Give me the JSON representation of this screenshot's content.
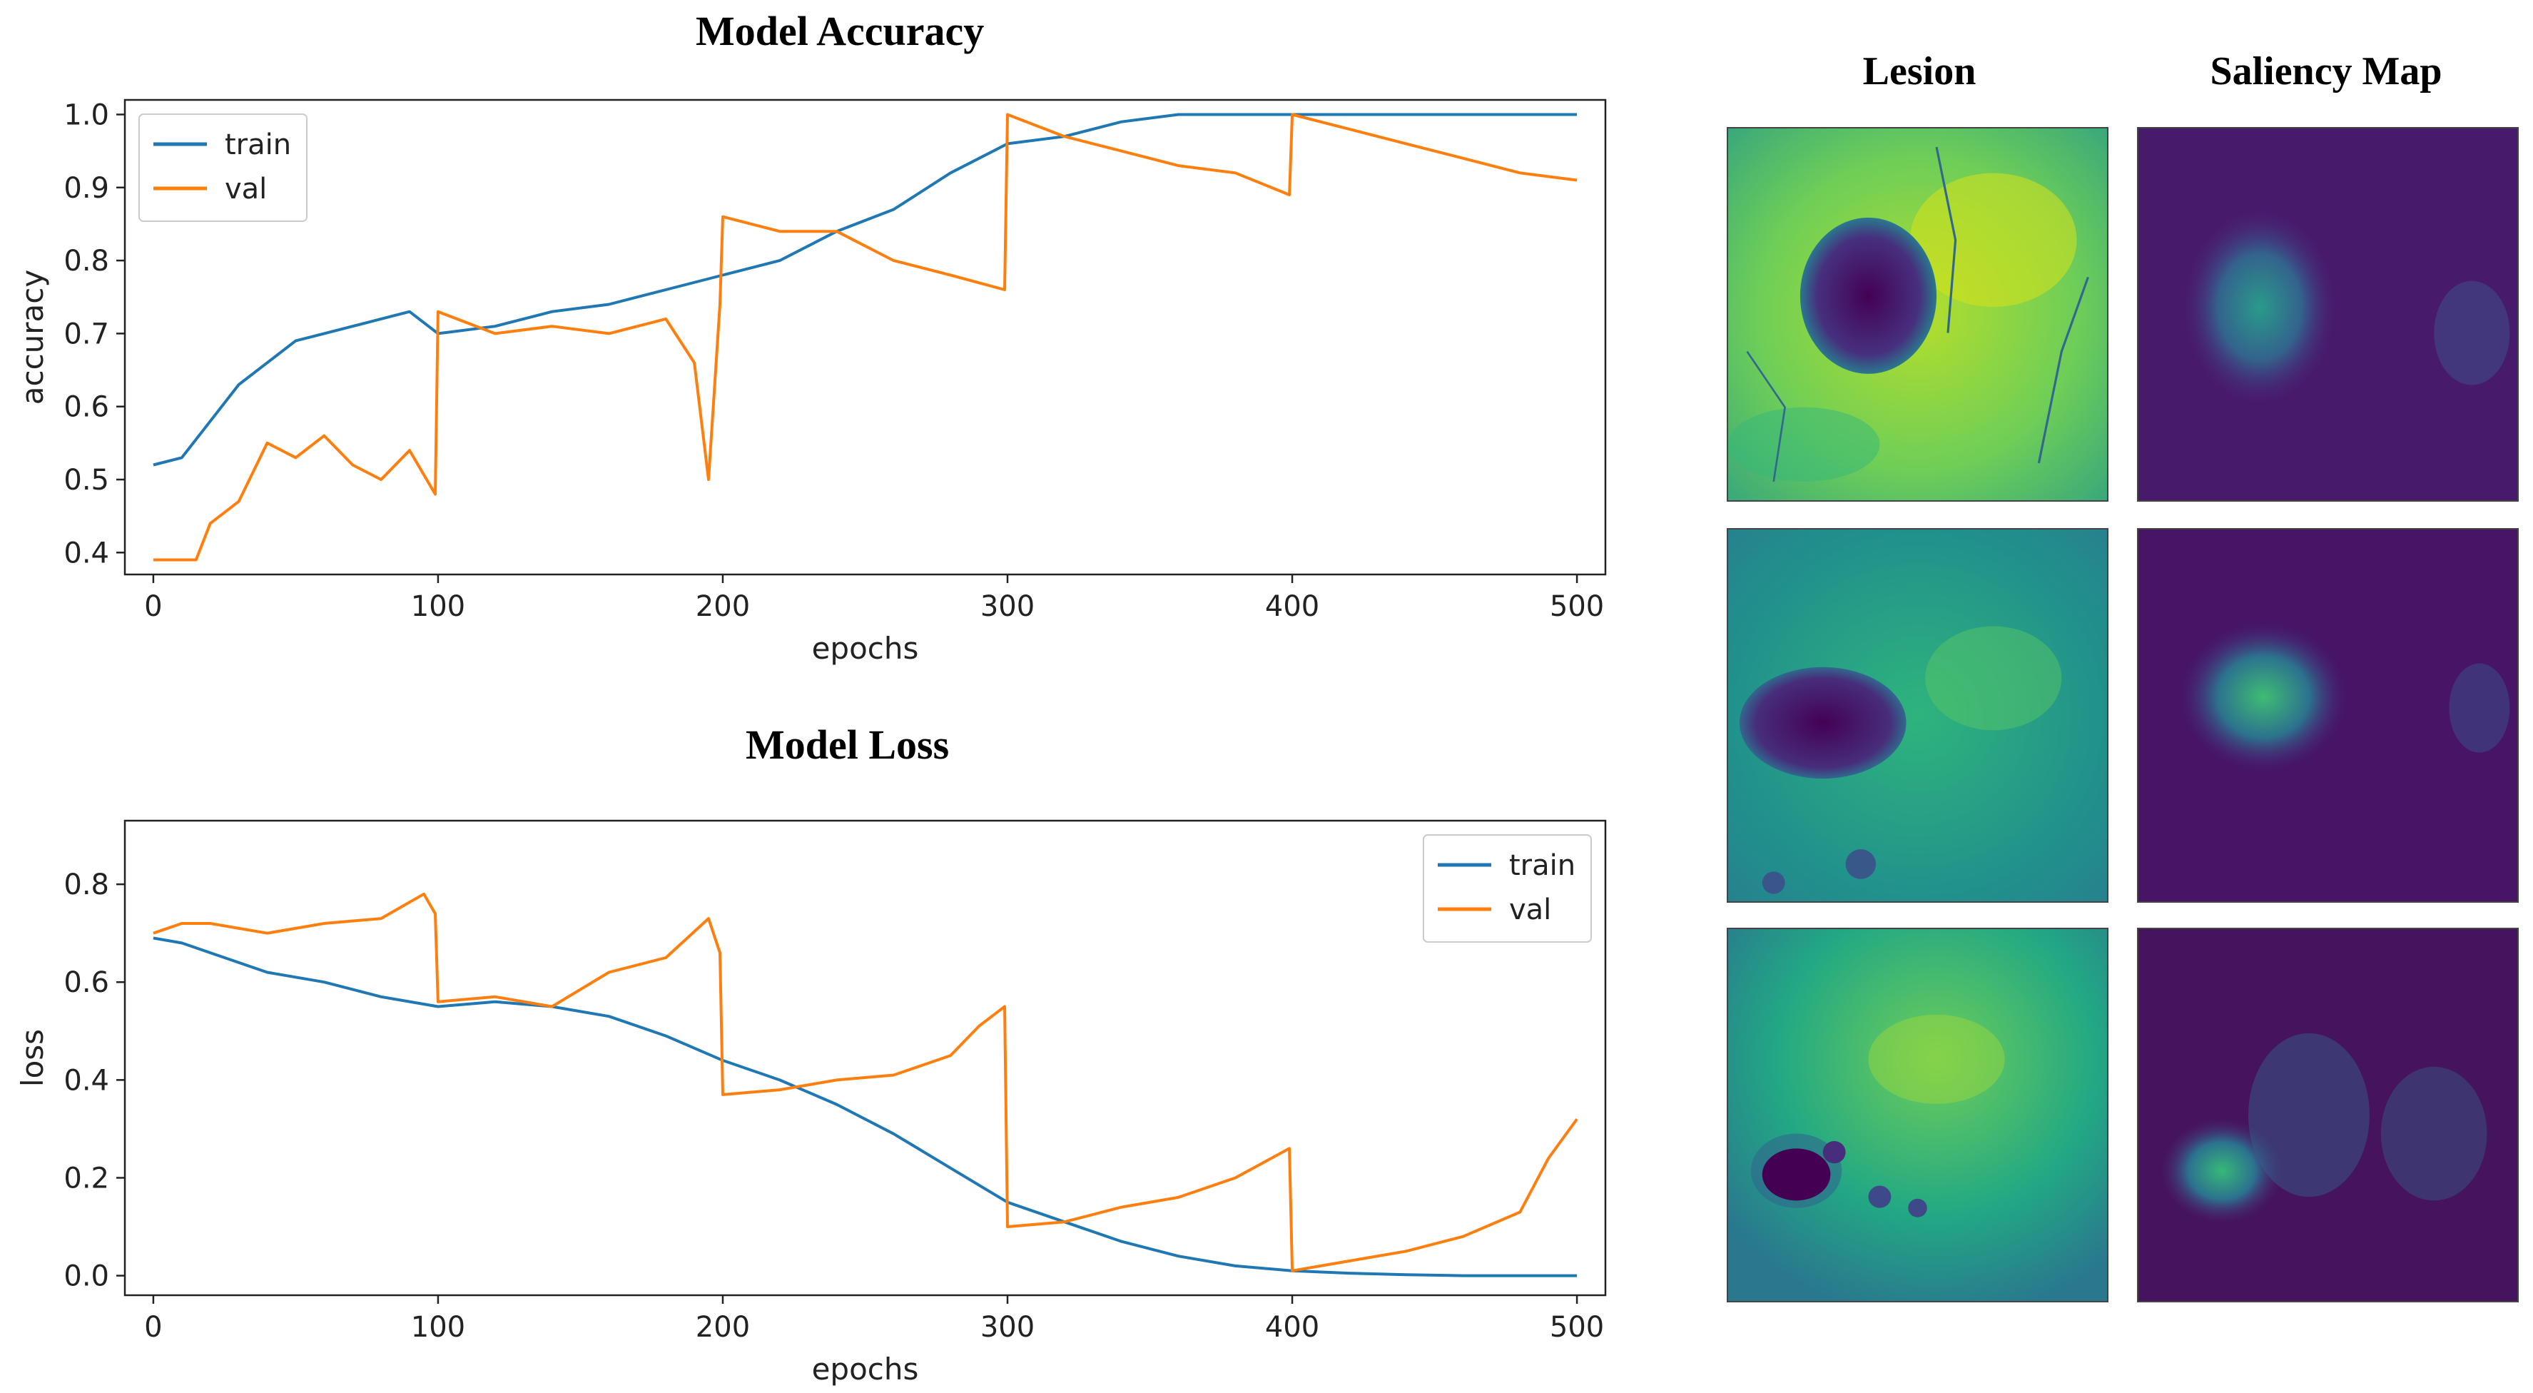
{
  "figure": {
    "lesion_title": "Lesion",
    "saliency_title": "Saliency Map"
  },
  "colors": {
    "train": "#1f77b4",
    "val": "#ff7f0e",
    "viridis_dark": "#440154",
    "viridis_mid": "#21908d",
    "viridis_light": "#fde725"
  },
  "chart_data": [
    {
      "type": "line",
      "title": "Model Accuracy",
      "xlabel": "epochs",
      "ylabel": "accuracy",
      "xlim": [
        -10,
        510
      ],
      "ylim": [
        0.37,
        1.02
      ],
      "xticks": [
        0,
        100,
        200,
        300,
        400,
        500
      ],
      "yticks": [
        0.4,
        0.5,
        0.6,
        0.7,
        0.8,
        0.9,
        1.0
      ],
      "ytick_labels": [
        "0.4",
        "0.5",
        "0.6",
        "0.7",
        "0.8",
        "0.9",
        "1.0"
      ],
      "legend": "top-left",
      "series": [
        {
          "name": "train",
          "x": [
            0,
            10,
            20,
            30,
            40,
            50,
            60,
            70,
            80,
            90,
            100,
            120,
            140,
            160,
            180,
            200,
            220,
            240,
            260,
            280,
            300,
            320,
            340,
            360,
            380,
            400,
            420,
            440,
            460,
            480,
            500
          ],
          "y": [
            0.52,
            0.53,
            0.58,
            0.63,
            0.66,
            0.69,
            0.7,
            0.71,
            0.72,
            0.73,
            0.7,
            0.71,
            0.73,
            0.74,
            0.76,
            0.78,
            0.8,
            0.84,
            0.87,
            0.92,
            0.96,
            0.97,
            0.99,
            1.0,
            1.0,
            1.0,
            1.0,
            1.0,
            1.0,
            1.0,
            1.0
          ]
        },
        {
          "name": "val",
          "x": [
            0,
            15,
            20,
            30,
            40,
            50,
            60,
            70,
            80,
            90,
            99,
            100,
            120,
            140,
            160,
            180,
            190,
            195,
            199,
            200,
            210,
            220,
            240,
            260,
            280,
            299,
            300,
            320,
            340,
            360,
            380,
            399,
            400,
            420,
            440,
            460,
            480,
            500
          ],
          "y": [
            0.39,
            0.39,
            0.44,
            0.47,
            0.55,
            0.53,
            0.56,
            0.52,
            0.5,
            0.54,
            0.48,
            0.73,
            0.7,
            0.71,
            0.7,
            0.72,
            0.66,
            0.5,
            0.74,
            0.86,
            0.85,
            0.84,
            0.84,
            0.8,
            0.78,
            0.76,
            1.0,
            0.97,
            0.95,
            0.93,
            0.92,
            0.89,
            1.0,
            0.98,
            0.96,
            0.94,
            0.92,
            0.91
          ]
        }
      ]
    },
    {
      "type": "line",
      "title": "Model Loss",
      "xlabel": "epochs",
      "ylabel": "loss",
      "xlim": [
        -10,
        510
      ],
      "ylim": [
        -0.04,
        0.93
      ],
      "xticks": [
        0,
        100,
        200,
        300,
        400,
        500
      ],
      "yticks": [
        0.0,
        0.2,
        0.4,
        0.6,
        0.8
      ],
      "ytick_labels": [
        "0.0",
        "0.2",
        "0.4",
        "0.6",
        "0.8"
      ],
      "legend": "top-right",
      "series": [
        {
          "name": "train",
          "x": [
            0,
            10,
            20,
            40,
            60,
            80,
            100,
            120,
            140,
            160,
            180,
            200,
            220,
            240,
            260,
            280,
            300,
            320,
            340,
            360,
            380,
            400,
            420,
            440,
            460,
            480,
            500
          ],
          "y": [
            0.69,
            0.68,
            0.66,
            0.62,
            0.6,
            0.57,
            0.55,
            0.56,
            0.55,
            0.53,
            0.49,
            0.44,
            0.4,
            0.35,
            0.29,
            0.22,
            0.15,
            0.11,
            0.07,
            0.04,
            0.02,
            0.01,
            0.005,
            0.002,
            0.0,
            0.0,
            0.0
          ]
        },
        {
          "name": "val",
          "x": [
            0,
            10,
            20,
            40,
            60,
            80,
            95,
            99,
            100,
            120,
            140,
            160,
            180,
            195,
            199,
            200,
            220,
            240,
            260,
            280,
            290,
            299,
            300,
            320,
            340,
            360,
            380,
            399,
            400,
            420,
            440,
            460,
            480,
            490,
            500
          ],
          "y": [
            0.7,
            0.72,
            0.72,
            0.7,
            0.72,
            0.73,
            0.78,
            0.74,
            0.56,
            0.57,
            0.55,
            0.62,
            0.65,
            0.73,
            0.66,
            0.37,
            0.38,
            0.4,
            0.41,
            0.45,
            0.51,
            0.55,
            0.1,
            0.11,
            0.14,
            0.16,
            0.2,
            0.26,
            0.01,
            0.03,
            0.05,
            0.08,
            0.13,
            0.24,
            0.32
          ]
        }
      ]
    }
  ]
}
